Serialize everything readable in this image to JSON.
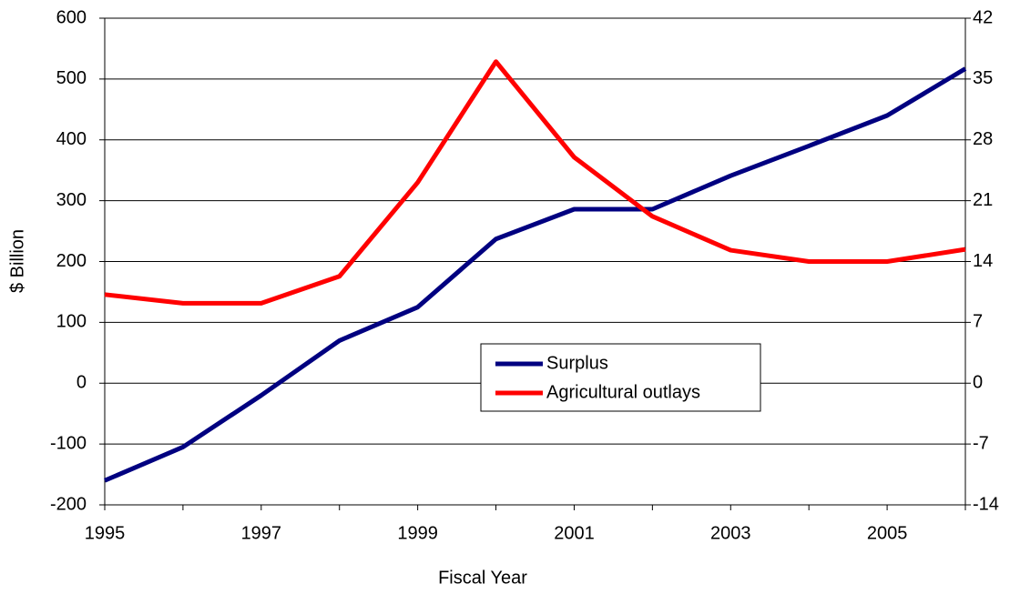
{
  "chart_data": {
    "type": "line",
    "x_label": "Fiscal Year",
    "y_label": "$ Billion",
    "categories": [
      "1995",
      null,
      "1997",
      null,
      "1999",
      null,
      "2001",
      null,
      "2003",
      null,
      "2005",
      null
    ],
    "series": [
      {
        "name": "Surplus",
        "color": "#000080",
        "values": [
          -160,
          -105,
          -20,
          70,
          125,
          237,
          286,
          286,
          341,
          390,
          440,
          517
        ]
      },
      {
        "name": "Agricultural outlays",
        "color": "#ff0000",
        "axis": "y2",
        "values": [
          10.2,
          9.2,
          9.2,
          12.3,
          23.1,
          37.0,
          26,
          19.2,
          15.3,
          14.0,
          14.0,
          15.4
        ]
      }
    ],
    "ylim": [
      -200,
      600
    ],
    "yticks": [
      -200,
      -100,
      0,
      100,
      200,
      300,
      400,
      500,
      600
    ],
    "y2lim": [
      -14,
      42
    ],
    "y2ticks": [
      -14,
      -7,
      0,
      7,
      14,
      21,
      28,
      35,
      42
    ],
    "grid": true,
    "legend": "center"
  }
}
